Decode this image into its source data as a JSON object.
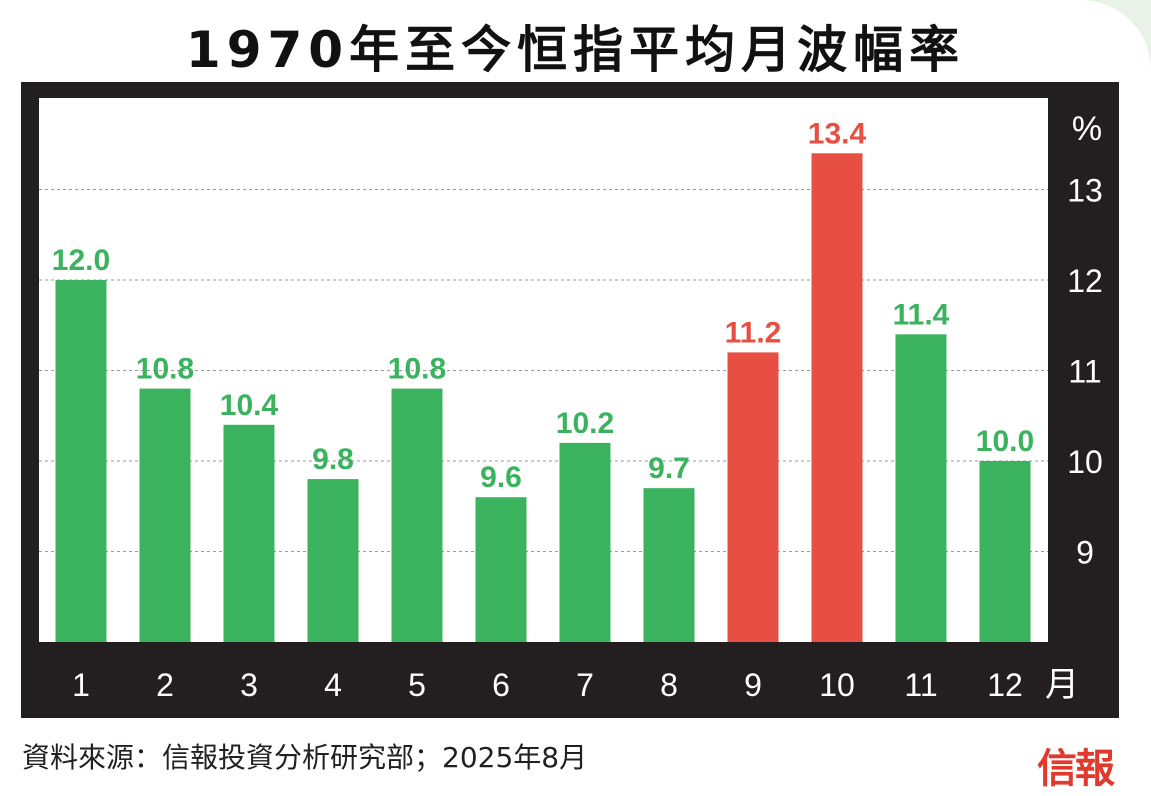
{
  "title": "1970年至今恒指平均月波幅率",
  "source": "資料來源：信報投資分析研究部；2025年8月",
  "brand": "信報",
  "colors": {
    "normal": "#3bb35e",
    "highlight": "#e84f43",
    "panel": "#231f20",
    "grid": "#9a9a9a"
  },
  "chart_data": {
    "type": "bar",
    "title": "1970年至今恒指平均月波幅率",
    "xlabel": "月",
    "ylabel": "%",
    "ylim": [
      8,
      14
    ],
    "yticks": [
      9,
      10,
      11,
      12,
      13
    ],
    "grid": true,
    "categories": [
      "1",
      "2",
      "3",
      "4",
      "5",
      "6",
      "7",
      "8",
      "9",
      "10",
      "11",
      "12"
    ],
    "values": [
      12.0,
      10.8,
      10.4,
      9.8,
      10.8,
      9.6,
      10.2,
      9.7,
      11.2,
      13.4,
      11.4,
      10.0
    ],
    "labels": [
      "12.0",
      "10.8",
      "10.4",
      "9.8",
      "10.8",
      "9.6",
      "10.2",
      "9.7",
      "11.2",
      "13.4",
      "11.4",
      "10.0"
    ],
    "highlighted": [
      "9",
      "10"
    ]
  }
}
